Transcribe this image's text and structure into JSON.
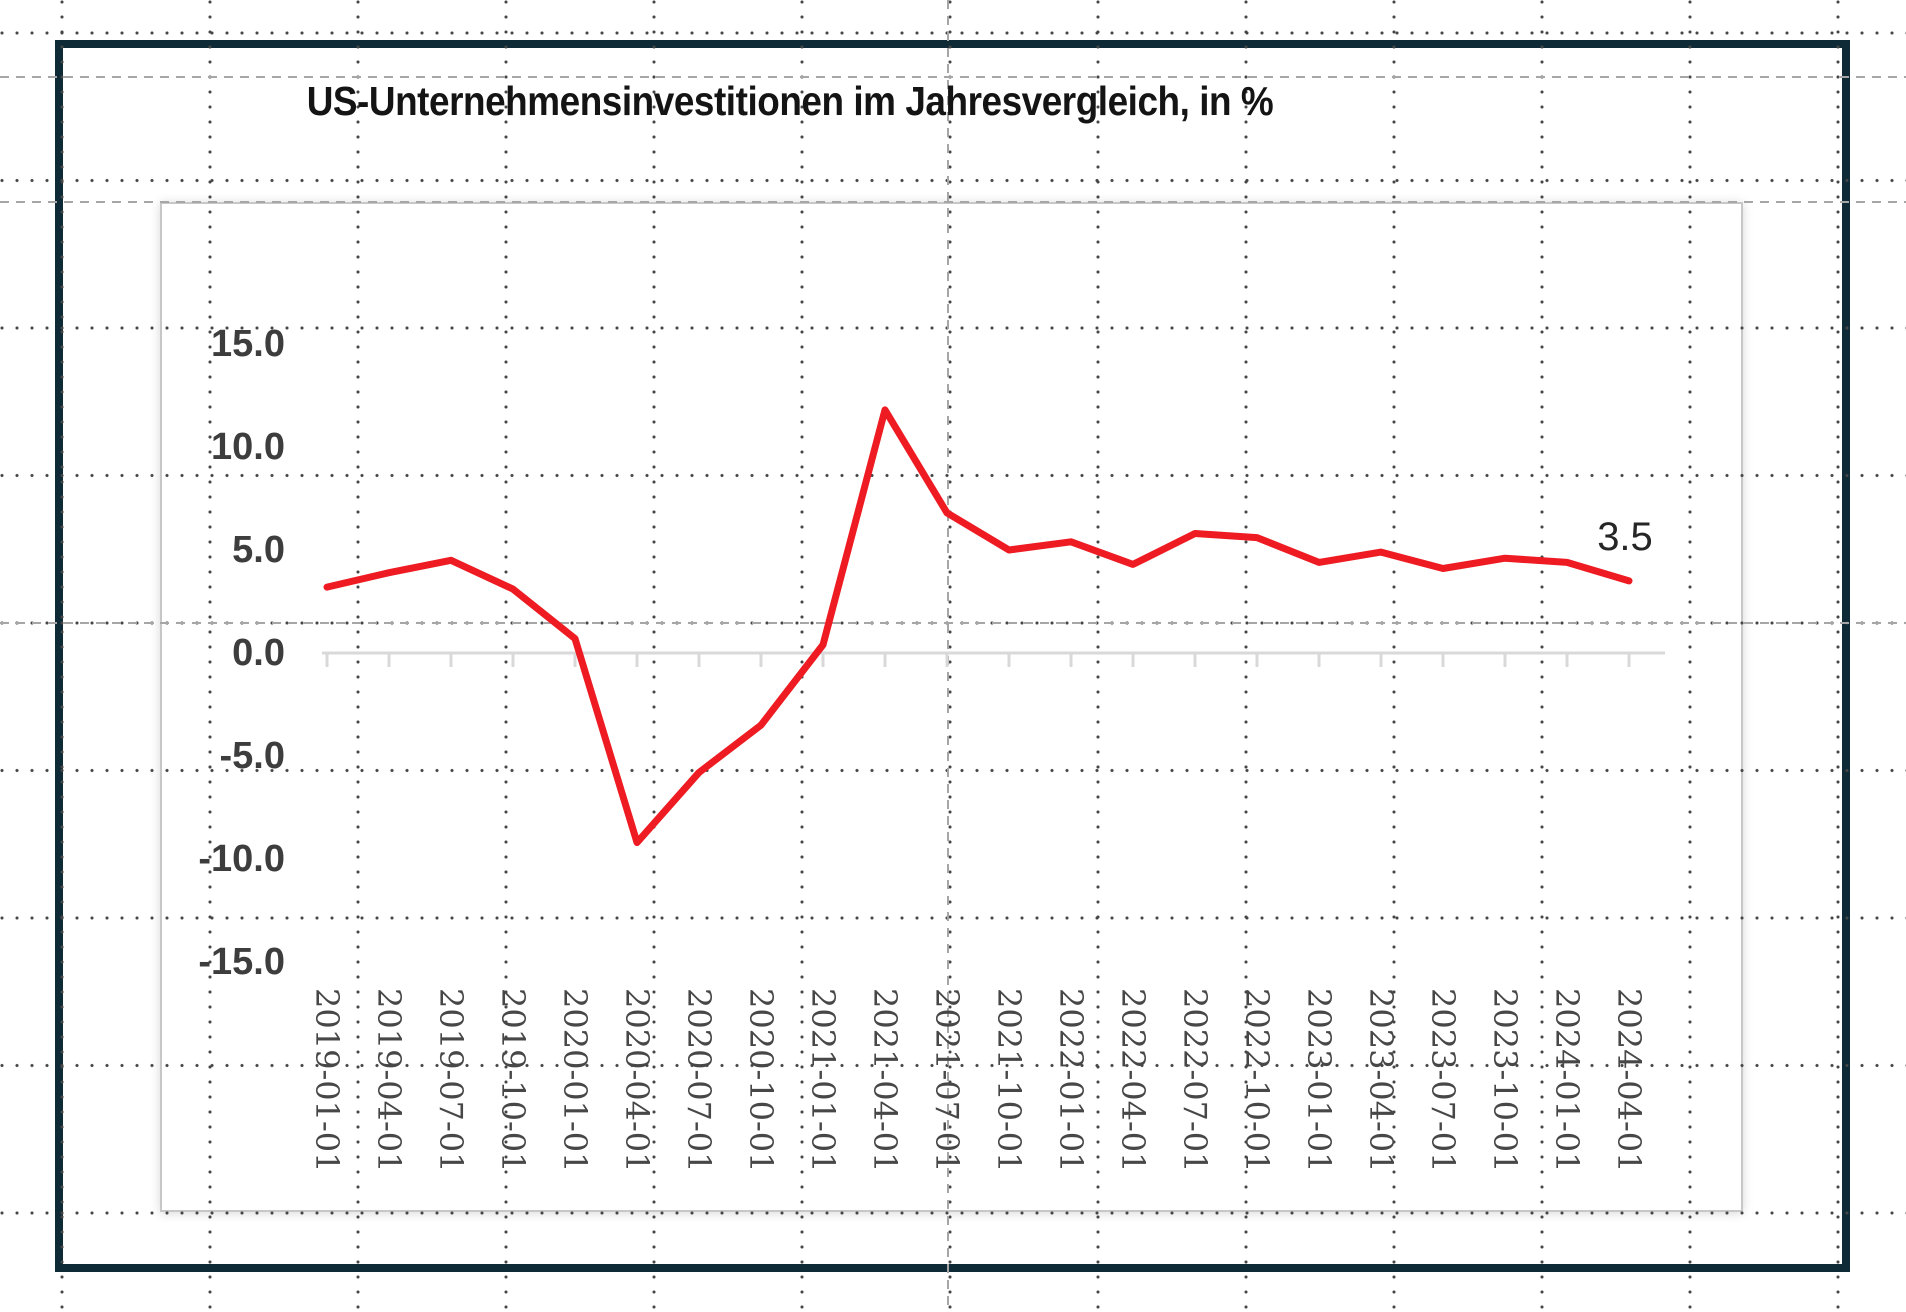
{
  "frame": {
    "border_color": "#0d2a36"
  },
  "chart": {
    "title": "US-Unternehmensinvestitionen im Jahresvergleich, in %",
    "colors": {
      "line": "#ee1b22",
      "axis": "#d9d9d9",
      "label": "#3d3d3d"
    }
  },
  "chart_data": {
    "type": "line",
    "title": "US-Unternehmensinvestitionen im Jahresvergleich, in %",
    "categories": [
      "2019-01-01",
      "2019-04-01",
      "2019-07-01",
      "2019-10-01",
      "2020-01-01",
      "2020-04-01",
      "2020-07-01",
      "2020-10-01",
      "2021-01-01",
      "2021-04-01",
      "2021-07-01",
      "2021-10-01",
      "2022-01-01",
      "2022-04-01",
      "2022-07-01",
      "2022-10-01",
      "2023-01-01",
      "2023-04-01",
      "2023-07-01",
      "2023-10-01",
      "2024-01-01",
      "2024-04-01"
    ],
    "values": [
      3.2,
      3.9,
      4.5,
      3.1,
      0.7,
      -9.2,
      -5.8,
      -3.5,
      0.4,
      11.8,
      6.8,
      5.0,
      5.4,
      4.3,
      5.8,
      5.6,
      4.4,
      4.9,
      4.1,
      4.6,
      4.4,
      3.5
    ],
    "end_label": "3.5",
    "xlabel": "",
    "ylabel": "",
    "ylim": [
      -15,
      15
    ],
    "grid": false,
    "legend": false,
    "y_ticks": [
      {
        "label": "15.0",
        "value": 15
      },
      {
        "label": "10.0",
        "value": 10
      },
      {
        "label": "5.0",
        "value": 5
      },
      {
        "label": "0.0",
        "value": 0
      },
      {
        "label": "-5.0",
        "value": -5
      },
      {
        "label": "-10.0",
        "value": -10
      },
      {
        "label": "-15.0",
        "value": -15
      }
    ]
  }
}
